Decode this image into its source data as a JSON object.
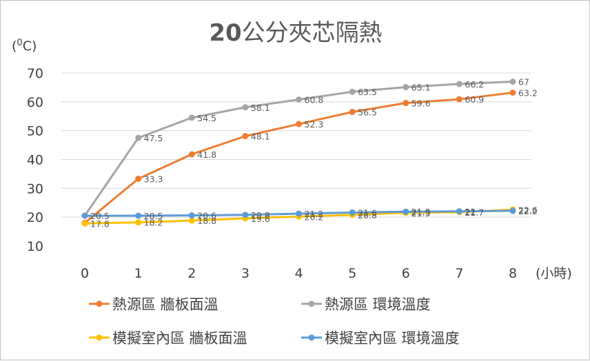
{
  "chart_data": {
    "type": "line",
    "title": "20公分夾芯隔熱",
    "ylabel": "(0C)",
    "xlabel": "(小時)",
    "ylim": [
      10,
      70
    ],
    "yticks": [
      10,
      20,
      30,
      40,
      50,
      60,
      70
    ],
    "x": [
      0,
      1,
      2,
      3,
      4,
      5,
      6,
      7,
      8
    ],
    "grid": "horizontal",
    "legend_position": "bottom",
    "series": [
      {
        "name": "熱源區 牆板面溫",
        "color": "#ed7d31",
        "values": [
          18,
          33.3,
          41.8,
          48.1,
          52.3,
          56.5,
          59.6,
          60.9,
          63.2
        ],
        "labels": [
          "",
          "33.3",
          "41.8",
          "48.1",
          "52.3",
          "56.5",
          "59.6",
          "60.9",
          "63.2"
        ]
      },
      {
        "name": "熱源區 環境溫度",
        "color": "#a5a5a5",
        "values": [
          20.5,
          47.5,
          54.5,
          58.1,
          60.8,
          63.5,
          65.1,
          66.2,
          67
        ],
        "labels": [
          "",
          "47.5",
          "54.5",
          "58.1",
          "60.8",
          "63.5",
          "65.1",
          "66.2",
          "67"
        ]
      },
      {
        "name": "模擬室內區 牆板面溫",
        "color": "#ffc000",
        "values": [
          17.8,
          18.2,
          18.8,
          19.6,
          20.2,
          20.8,
          21.5,
          21.7,
          22.6
        ],
        "labels": [
          "17.8",
          "18.2",
          "18.8",
          "19.6",
          "20.2",
          "20.8",
          "21.5",
          "21.7",
          "22.6"
        ]
      },
      {
        "name": "模擬室內區 環境溫度",
        "color": "#5b9bd5",
        "values": [
          20.5,
          20.5,
          20.6,
          20.8,
          21.2,
          21.6,
          21.9,
          22,
          22.2
        ],
        "labels": [
          "20.5",
          "20.5",
          "20.6",
          "20.8",
          "21.2",
          "21.6",
          "21.9",
          "22",
          "22.2"
        ]
      }
    ]
  }
}
